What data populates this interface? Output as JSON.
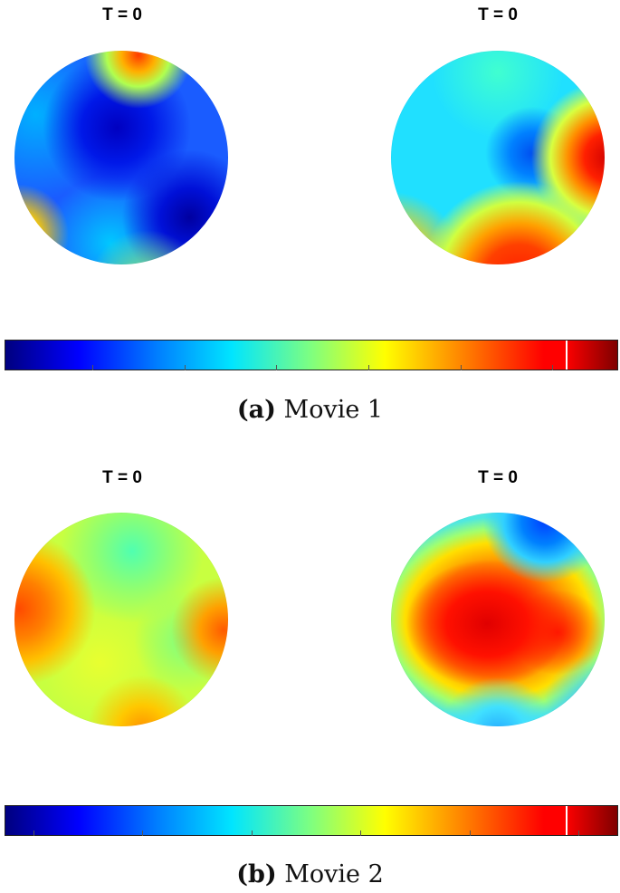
{
  "panels": [
    {
      "id": "a",
      "caption_label": "(a)",
      "caption_text": "Movie 1",
      "spheres": [
        {
          "time_label": "T = 0"
        },
        {
          "time_label": "T = 0"
        }
      ]
    },
    {
      "id": "b",
      "caption_label": "(b)",
      "caption_text": "Movie 2",
      "spheres": [
        {
          "time_label": "T = 0"
        },
        {
          "time_label": "T = 0"
        }
      ]
    }
  ],
  "colormap": [
    "#00007f",
    "#0000ff",
    "#0080ff",
    "#00e5ff",
    "#7fff7f",
    "#ffff00",
    "#ff8000",
    "#ff0000",
    "#7f0000"
  ]
}
